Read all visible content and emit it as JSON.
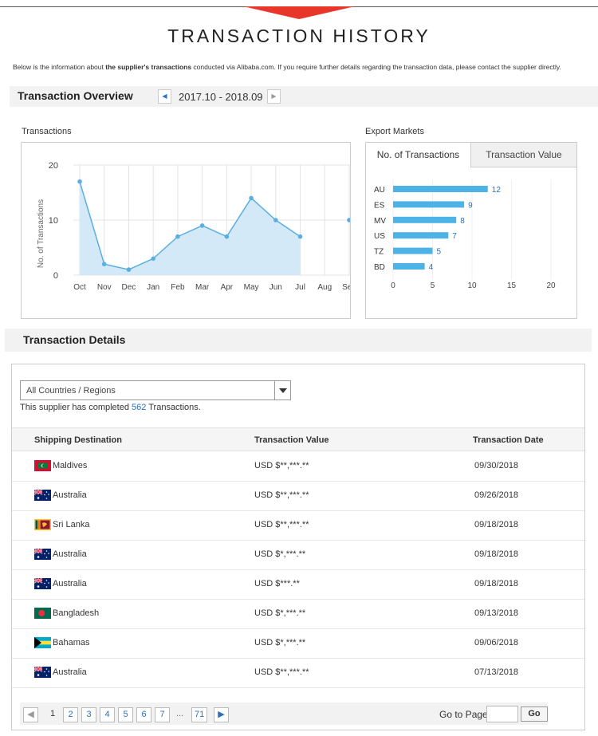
{
  "page_title": "TRANSACTION HISTORY",
  "intro": {
    "part1": "Below is the information about ",
    "bold": "the supplier's transactions",
    "part2": " conducted via Alibaba.com. If you require further details regarding the transaction data, please contact the supplier directly."
  },
  "overview": {
    "title": "Transaction Overview",
    "range": "2017.10 - 2018.09",
    "prev_icon": "chevron-left-icon",
    "next_icon": "chevron-right-icon"
  },
  "transactions_chart": {
    "label": "Transactions",
    "ylabel": "No. of Transactions",
    "yticks": [
      "0",
      "10",
      "20"
    ],
    "categories": [
      "Oct",
      "Nov",
      "Dec",
      "Jan",
      "Feb",
      "Mar",
      "Apr",
      "May",
      "Jun",
      "Jul",
      "Aug",
      "Sep"
    ]
  },
  "export_markets": {
    "label": "Export Markets",
    "tabs": [
      "No. of Transactions",
      "Transaction Value"
    ],
    "active_tab": "No. of Transactions",
    "xticks": [
      "0",
      "5",
      "10",
      "15",
      "20"
    ]
  },
  "chart_data": [
    {
      "type": "area",
      "title": "Transactions",
      "ylabel": "No. of Transactions",
      "ylim": [
        0,
        20
      ],
      "categories": [
        "Oct",
        "Nov",
        "Dec",
        "Jan",
        "Feb",
        "Mar",
        "Apr",
        "May",
        "Jun",
        "Jul",
        "Aug",
        "Sep"
      ],
      "values": [
        17,
        2,
        1,
        3,
        7,
        9,
        7,
        14,
        10,
        7,
        null,
        10
      ],
      "color": "#5aaee0",
      "fill": "#d4e9f7",
      "grid": true
    },
    {
      "type": "bar",
      "orientation": "horizontal",
      "title": "Export Markets",
      "categories": [
        "AU",
        "ES",
        "MV",
        "US",
        "TZ",
        "BD"
      ],
      "values": [
        12,
        9,
        8,
        7,
        5,
        4
      ],
      "xlim": [
        0,
        20
      ],
      "color": "#4db3e6",
      "grid": true
    }
  ],
  "details": {
    "title": "Transaction Details",
    "filter_value": "All Countries / Regions",
    "completed_prefix": "This supplier has completed ",
    "completed_count": "562",
    "completed_suffix": " Transactions.",
    "columns": [
      "Shipping Destination",
      "Transaction Value",
      "Transaction Date"
    ],
    "rows": [
      {
        "country": "Maldives",
        "flag": "maldives-flag-icon",
        "value": "USD $**,***.**",
        "date": "09/30/2018"
      },
      {
        "country": "Australia",
        "flag": "australia-flag-icon",
        "value": "USD $**,***.**",
        "date": "09/26/2018"
      },
      {
        "country": "Sri Lanka",
        "flag": "sri-lanka-flag-icon",
        "value": "USD $**,***.**",
        "date": "09/18/2018"
      },
      {
        "country": "Australia",
        "flag": "australia-flag-icon",
        "value": "USD $*,***.**",
        "date": "09/18/2018"
      },
      {
        "country": "Australia",
        "flag": "australia-flag-icon",
        "value": "USD $***.**",
        "date": "09/18/2018"
      },
      {
        "country": "Bangladesh",
        "flag": "bangladesh-flag-icon",
        "value": "USD $*,***.**",
        "date": "09/13/2018"
      },
      {
        "country": "Bahamas",
        "flag": "bahamas-flag-icon",
        "value": "USD $*,***.**",
        "date": "09/06/2018"
      },
      {
        "country": "Australia",
        "flag": "australia-flag-icon",
        "value": "USD $**,***.**",
        "date": "07/13/2018"
      }
    ]
  },
  "pagination": {
    "current": "1",
    "pages": [
      "2",
      "3",
      "4",
      "5",
      "6",
      "7"
    ],
    "ellipsis": "...",
    "last": "71",
    "goto_label": "Go to Page",
    "go_label": "Go"
  },
  "colors": {
    "accent_red": "#e8362a",
    "link_blue": "#2a6fc0",
    "bar_blue": "#4db3e6"
  }
}
